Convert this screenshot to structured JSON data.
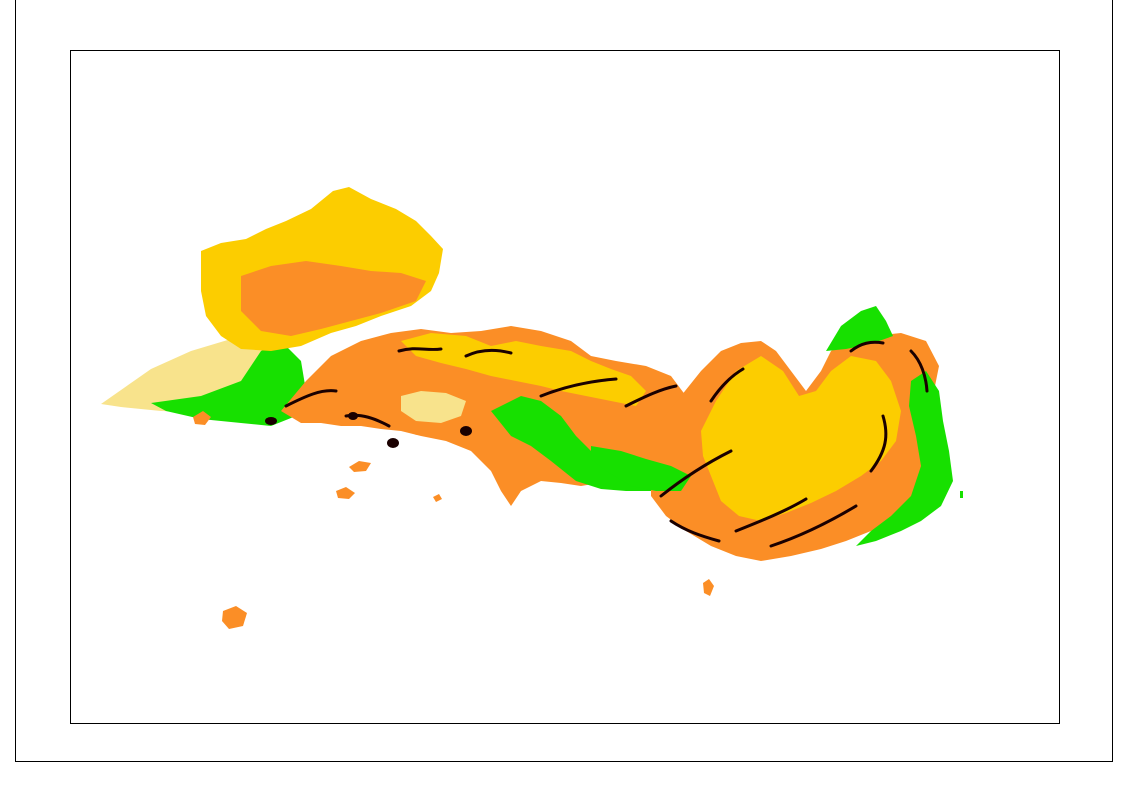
{
  "map": {
    "classes": [
      {
        "id": "sandy-lowland",
        "color": "#f8e38c"
      },
      {
        "id": "vegetation",
        "color": "#17e000"
      },
      {
        "id": "moderate",
        "color": "#fccd00"
      },
      {
        "id": "high",
        "color": "#fb8e26"
      },
      {
        "id": "very-high",
        "color": "#1a0000"
      }
    ],
    "page_frame_color": "#000000",
    "map_frame_color": "#000000"
  }
}
